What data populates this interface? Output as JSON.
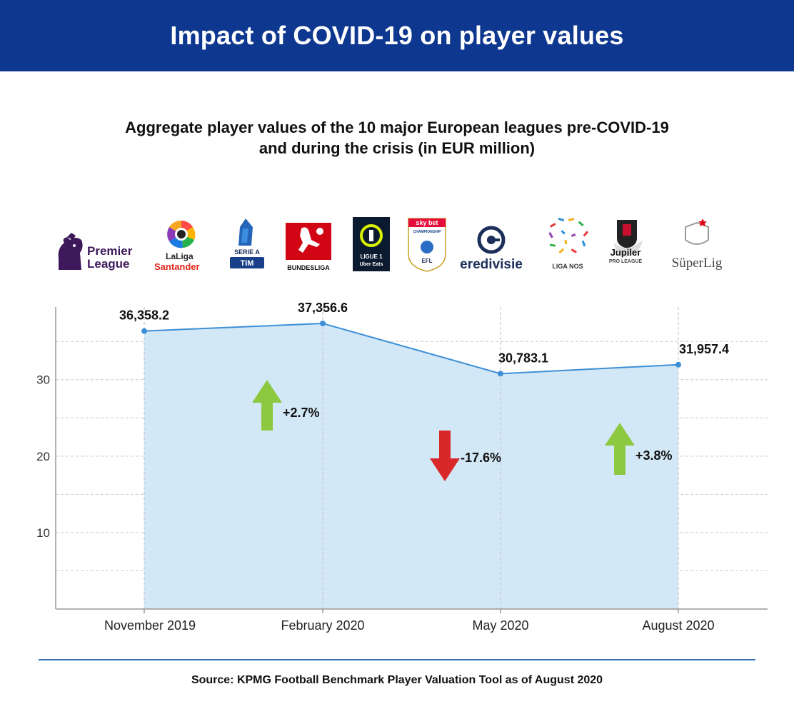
{
  "header": {
    "title": "Impact of COVID-19 on player values"
  },
  "chart_data": {
    "type": "area",
    "title": "Aggregate player values of the 10 major European leagues pre-COVID-19 and during the crisis (in EUR million)",
    "title_lines": [
      "Aggregate player values of the 10 major European leagues pre-COVID-19",
      "and during the crisis (in EUR million)"
    ],
    "categories": [
      "November 2019",
      "February 2020",
      "May 2020",
      "August 2020"
    ],
    "values": [
      36358.2,
      37356.6,
      30783.1,
      31957.4
    ],
    "value_labels": [
      "36,358.2",
      "37,356.6",
      "30,783.1",
      "31,957.4"
    ],
    "ylim": [
      0,
      39500
    ],
    "yticks": [
      10000,
      20000,
      30000
    ],
    "ytick_labels": [
      "10",
      "20",
      "30"
    ],
    "grid": true,
    "changes": [
      {
        "label": "+2.7%",
        "direction": "up"
      },
      {
        "label": "-17.6%",
        "direction": "down"
      },
      {
        "label": "+3.8%",
        "direction": "up"
      }
    ],
    "colors": {
      "line": "#3d8fd6",
      "fill": "#d3e8f6",
      "up": "#8cc940",
      "down": "#d9282a"
    }
  },
  "logos": [
    {
      "name": "premier-league-logo",
      "text": [
        "Premier",
        "League"
      ]
    },
    {
      "name": "laliga-logo",
      "text": [
        "LaLiga",
        "Santander"
      ]
    },
    {
      "name": "serie-a-logo",
      "text": [
        "SERIE A",
        "TIM"
      ]
    },
    {
      "name": "bundesliga-logo",
      "text": [
        "BUNDESLIGA"
      ]
    },
    {
      "name": "ligue1-logo",
      "text": [
        "LIGUE 1",
        "Uber Eats"
      ]
    },
    {
      "name": "efl-championship-logo",
      "text": [
        "sky bet",
        "CHAMPIONSHIP",
        "EFL"
      ]
    },
    {
      "name": "eredivisie-logo",
      "text": [
        "eredivisie"
      ]
    },
    {
      "name": "liga-nos-logo",
      "text": [
        "LIGA NOS"
      ]
    },
    {
      "name": "jupiler-pro-league-logo",
      "text": [
        "Jupiler",
        "PRO LEAGUE"
      ]
    },
    {
      "name": "super-lig-logo",
      "text": [
        "SüperLig"
      ]
    }
  ],
  "source": "Source: KPMG Football Benchmark Player Valuation Tool as of August 2020",
  "colors": {
    "header": "#0e3790",
    "rule": "#2f6db5"
  }
}
